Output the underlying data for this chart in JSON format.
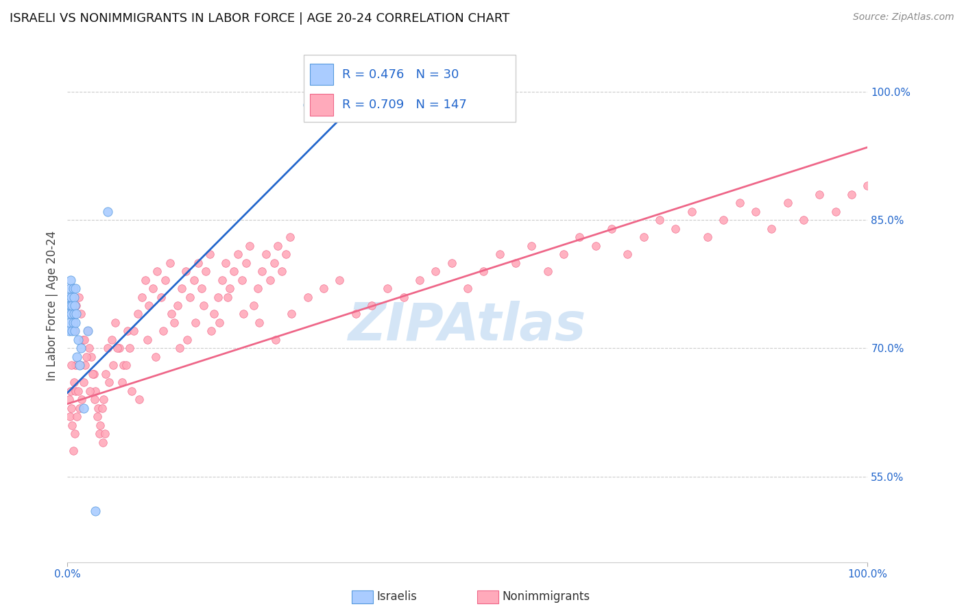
{
  "title": "ISRAELI VS NONIMMIGRANTS IN LABOR FORCE | AGE 20-24 CORRELATION CHART",
  "source": "Source: ZipAtlas.com",
  "ylabel": "In Labor Force | Age 20-24",
  "xlim": [
    0.0,
    1.0
  ],
  "ylim": [
    0.45,
    1.05
  ],
  "yticks": [
    0.55,
    0.7,
    0.85,
    1.0
  ],
  "ytick_labels": [
    "55.0%",
    "70.0%",
    "85.0%",
    "100.0%"
  ],
  "israeli_R": 0.476,
  "israeli_N": 30,
  "nonimm_R": 0.709,
  "nonimm_N": 147,
  "israeli_color": "#aaccff",
  "israeli_edge": "#5599dd",
  "nonimm_color": "#ffaabb",
  "nonimm_edge": "#ee6688",
  "israeli_line_color": "#2266cc",
  "nonimm_line_color": "#ee6688",
  "background_color": "#ffffff",
  "grid_color": "#cccccc",
  "watermark_text": "ZIPAtlas",
  "watermark_color": "#aaccee",
  "title_color": "#111111",
  "legend_R_color": "#2266cc",
  "axis_color": "#2266cc",
  "israeli_scatter_x": [
    0.001,
    0.001,
    0.002,
    0.002,
    0.003,
    0.003,
    0.004,
    0.004,
    0.005,
    0.005,
    0.006,
    0.006,
    0.007,
    0.007,
    0.008,
    0.008,
    0.009,
    0.009,
    0.01,
    0.01,
    0.011,
    0.012,
    0.013,
    0.015,
    0.017,
    0.02,
    0.025,
    0.035,
    0.05,
    0.3
  ],
  "israeli_scatter_y": [
    0.74,
    0.76,
    0.72,
    0.75,
    0.73,
    0.77,
    0.75,
    0.78,
    0.74,
    0.76,
    0.72,
    0.75,
    0.73,
    0.77,
    0.74,
    0.76,
    0.72,
    0.75,
    0.73,
    0.77,
    0.74,
    0.69,
    0.71,
    0.68,
    0.7,
    0.63,
    0.72,
    0.51,
    0.86,
    0.985
  ],
  "nonimm_scatter_x": [
    0.002,
    0.003,
    0.004,
    0.005,
    0.006,
    0.007,
    0.008,
    0.009,
    0.01,
    0.01,
    0.012,
    0.013,
    0.015,
    0.016,
    0.018,
    0.019,
    0.02,
    0.022,
    0.025,
    0.027,
    0.03,
    0.033,
    0.035,
    0.038,
    0.04,
    0.043,
    0.045,
    0.048,
    0.05,
    0.055,
    0.06,
    0.065,
    0.07,
    0.075,
    0.08,
    0.09,
    0.1,
    0.11,
    0.12,
    0.13,
    0.14,
    0.15,
    0.16,
    0.17,
    0.18,
    0.19,
    0.2,
    0.22,
    0.24,
    0.26,
    0.28,
    0.3,
    0.32,
    0.34,
    0.36,
    0.38,
    0.4,
    0.42,
    0.44,
    0.46,
    0.48,
    0.5,
    0.52,
    0.54,
    0.56,
    0.58,
    0.6,
    0.62,
    0.64,
    0.66,
    0.68,
    0.7,
    0.72,
    0.74,
    0.76,
    0.78,
    0.8,
    0.82,
    0.84,
    0.86,
    0.88,
    0.9,
    0.92,
    0.94,
    0.96,
    0.98,
    1.0,
    0.005,
    0.008,
    0.011,
    0.014,
    0.017,
    0.021,
    0.024,
    0.028,
    0.031,
    0.034,
    0.037,
    0.041,
    0.044,
    0.047,
    0.052,
    0.057,
    0.062,
    0.068,
    0.073,
    0.078,
    0.083,
    0.088,
    0.093,
    0.097,
    0.102,
    0.107,
    0.112,
    0.117,
    0.122,
    0.128,
    0.133,
    0.138,
    0.143,
    0.148,
    0.153,
    0.158,
    0.163,
    0.168,
    0.173,
    0.178,
    0.183,
    0.188,
    0.193,
    0.198,
    0.203,
    0.208,
    0.213,
    0.218,
    0.223,
    0.228,
    0.233,
    0.238,
    0.243,
    0.248,
    0.253,
    0.258,
    0.263,
    0.268,
    0.273,
    0.278
  ],
  "nonimm_scatter_y": [
    0.64,
    0.62,
    0.65,
    0.63,
    0.61,
    0.58,
    0.66,
    0.6,
    0.65,
    0.68,
    0.62,
    0.65,
    0.63,
    0.68,
    0.64,
    0.71,
    0.66,
    0.68,
    0.72,
    0.7,
    0.69,
    0.67,
    0.65,
    0.63,
    0.6,
    0.63,
    0.64,
    0.67,
    0.7,
    0.71,
    0.73,
    0.7,
    0.68,
    0.72,
    0.65,
    0.64,
    0.71,
    0.69,
    0.72,
    0.74,
    0.7,
    0.71,
    0.73,
    0.75,
    0.72,
    0.73,
    0.76,
    0.74,
    0.73,
    0.71,
    0.74,
    0.76,
    0.77,
    0.78,
    0.74,
    0.75,
    0.77,
    0.76,
    0.78,
    0.79,
    0.8,
    0.77,
    0.79,
    0.81,
    0.8,
    0.82,
    0.79,
    0.81,
    0.83,
    0.82,
    0.84,
    0.81,
    0.83,
    0.85,
    0.84,
    0.86,
    0.83,
    0.85,
    0.87,
    0.86,
    0.84,
    0.87,
    0.85,
    0.88,
    0.86,
    0.88,
    0.89,
    0.68,
    0.72,
    0.75,
    0.76,
    0.74,
    0.71,
    0.69,
    0.65,
    0.67,
    0.64,
    0.62,
    0.61,
    0.59,
    0.6,
    0.66,
    0.68,
    0.7,
    0.66,
    0.68,
    0.7,
    0.72,
    0.74,
    0.76,
    0.78,
    0.75,
    0.77,
    0.79,
    0.76,
    0.78,
    0.8,
    0.73,
    0.75,
    0.77,
    0.79,
    0.76,
    0.78,
    0.8,
    0.77,
    0.79,
    0.81,
    0.74,
    0.76,
    0.78,
    0.8,
    0.77,
    0.79,
    0.81,
    0.78,
    0.8,
    0.82,
    0.75,
    0.77,
    0.79,
    0.81,
    0.78,
    0.8,
    0.82,
    0.79,
    0.81,
    0.83
  ],
  "israeli_line_x": [
    0.0,
    0.38
  ],
  "israeli_line_y_start": 0.648,
  "israeli_line_y_end": 1.005,
  "nonimm_line_x": [
    0.0,
    1.0
  ],
  "nonimm_line_y_start": 0.635,
  "nonimm_line_y_end": 0.935
}
